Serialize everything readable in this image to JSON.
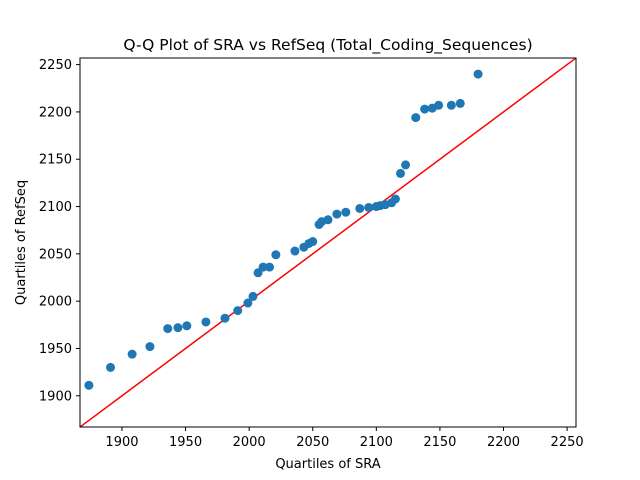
{
  "chart_data": {
    "type": "scatter",
    "title": "Q-Q Plot of SRA vs RefSeq (Total_Coding_Sequences)",
    "xlabel": "Quartiles of SRA",
    "ylabel": "Quartiles of RefSeq",
    "xlim": [
      1867,
      2257
    ],
    "ylim": [
      1867,
      2257
    ],
    "xticks": [
      1900,
      1950,
      2000,
      2050,
      2100,
      2150,
      2200,
      2250
    ],
    "yticks": [
      1900,
      1950,
      2000,
      2050,
      2100,
      2150,
      2200,
      2250
    ],
    "grid": false,
    "point_color": "#1f77b4",
    "reference_line": {
      "from": [
        1867,
        1867
      ],
      "to": [
        2257,
        2257
      ],
      "color": "#ff0000"
    },
    "series": [
      {
        "points": [
          [
            1874,
            1911
          ],
          [
            1891,
            1930
          ],
          [
            1908,
            1944
          ],
          [
            1922,
            1952
          ],
          [
            1936,
            1971
          ],
          [
            1944,
            1972
          ],
          [
            1951,
            1974
          ],
          [
            1966,
            1978
          ],
          [
            1981,
            1982
          ],
          [
            1991,
            1990
          ],
          [
            1999,
            1998
          ],
          [
            2003,
            2005
          ],
          [
            2007,
            2030
          ],
          [
            2011,
            2036
          ],
          [
            2016,
            2036
          ],
          [
            2021,
            2049
          ],
          [
            2036,
            2053
          ],
          [
            2043,
            2057
          ],
          [
            2047,
            2061
          ],
          [
            2050,
            2063
          ],
          [
            2055,
            2081
          ],
          [
            2057,
            2084
          ],
          [
            2062,
            2086
          ],
          [
            2069,
            2092
          ],
          [
            2076,
            2094
          ],
          [
            2087,
            2098
          ],
          [
            2094,
            2099
          ],
          [
            2100,
            2100
          ],
          [
            2103,
            2101
          ],
          [
            2107,
            2102
          ],
          [
            2112,
            2104
          ],
          [
            2115,
            2108
          ],
          [
            2119,
            2135
          ],
          [
            2123,
            2144
          ],
          [
            2131,
            2194
          ],
          [
            2138,
            2203
          ],
          [
            2144,
            2204
          ],
          [
            2149,
            2207
          ],
          [
            2159,
            2207
          ],
          [
            2166,
            2209
          ],
          [
            2180,
            2240
          ]
        ]
      }
    ]
  }
}
